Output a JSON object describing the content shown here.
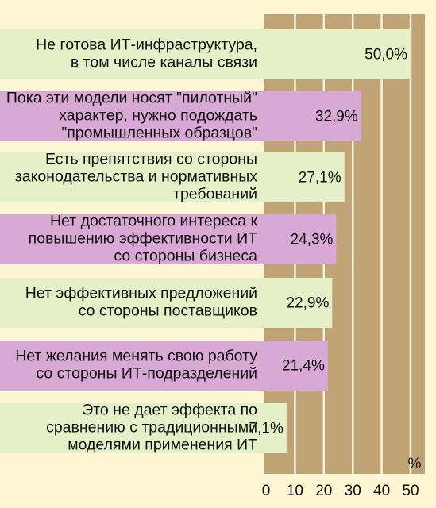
{
  "chart_data": {
    "type": "bar",
    "orientation": "horizontal",
    "categories": [
      [
        "Не готова ИТ-инфраструктура,",
        "в том числе каналы связи"
      ],
      [
        "Пока эти модели носят \"пилотный\"",
        "характер, нужно подождать",
        "\"промышленных образцов\""
      ],
      [
        "Есть препятствия со стороны",
        "законодательства и нормативных",
        "требований"
      ],
      [
        "Нет достаточного интереса к",
        "повышению эффективности ИТ",
        "со стороны бизнеса"
      ],
      [
        "Нет эффективных предложений",
        "со стороны поставщиков"
      ],
      [
        "Нет желания менять свою работу",
        "со стороны ИТ-подразделений"
      ],
      [
        "Это не дает эффекта по",
        "сравнению с традиционными",
        "моделями применения ИТ"
      ]
    ],
    "values": [
      50.0,
      32.9,
      27.1,
      24.3,
      22.9,
      21.4,
      7.1
    ],
    "value_labels": [
      "50,0%",
      "32,9%",
      "27,1%",
      "24,3%",
      "22,9%",
      "21,4%",
      "7,1%"
    ],
    "x_ticks": [
      "0",
      "10",
      "20",
      "30",
      "40",
      "50"
    ],
    "x_unit": "%",
    "xlim": [
      0,
      50
    ],
    "grid": true,
    "colors": {
      "page_background": "#fdf6d2",
      "plot_background": "#c0a475",
      "gridline": "#fbf4dc",
      "bar_alternate_a": "#e6f0c8",
      "bar_alternate_b": "#d9a9d5"
    }
  }
}
